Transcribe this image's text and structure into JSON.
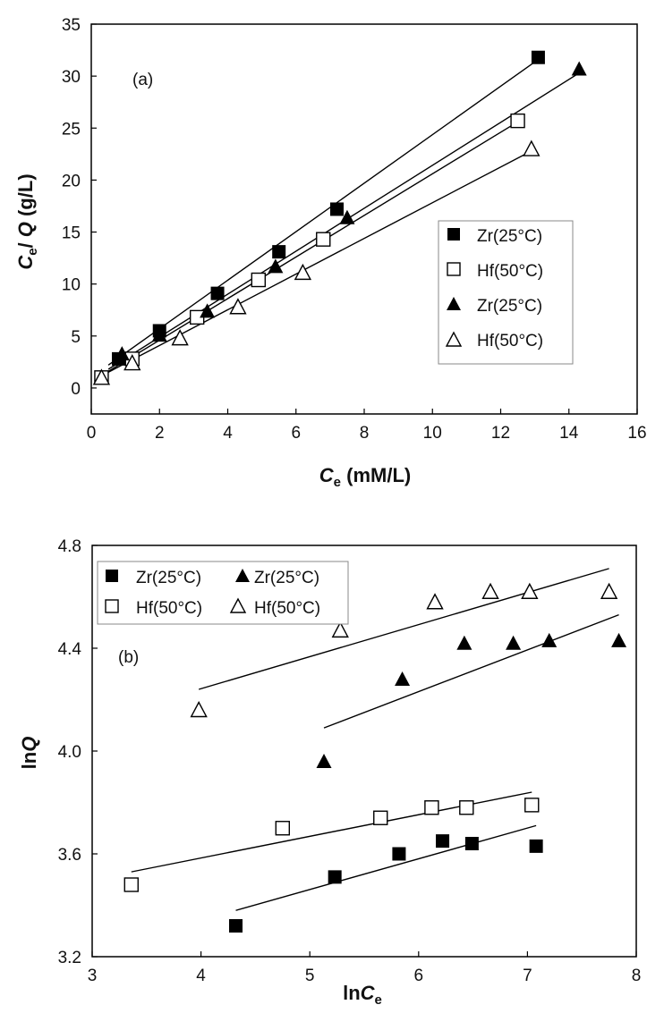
{
  "chart_data": [
    {
      "type": "scatter",
      "panel_label": "(a)",
      "xlabel_main": "C",
      "xlabel_sub": "e",
      "xlabel_rest": " (mM/L)",
      "ylabel_main1": "C",
      "ylabel_sub": "e",
      "ylabel_mid": "/ ",
      "ylabel_main2": "Q",
      "ylabel_rest": " (g/L)",
      "xlim": [
        0,
        16
      ],
      "ylim": [
        -2.5,
        35
      ],
      "xticks": [
        0,
        2,
        4,
        6,
        8,
        10,
        12,
        14,
        16
      ],
      "yticks": [
        0,
        5,
        10,
        15,
        20,
        25,
        30,
        35
      ],
      "grid": false,
      "legend_position": "right-middle",
      "series": [
        {
          "name": "Zr(25°C)",
          "marker": "square-filled",
          "x": [
            0.8,
            2.0,
            3.7,
            5.5,
            7.2,
            13.1
          ],
          "y": [
            2.8,
            5.5,
            9.1,
            13.1,
            17.2,
            31.8
          ],
          "fit": [
            [
              0.5,
              2.2
            ],
            [
              13.1,
              31.6
            ]
          ]
        },
        {
          "name": "Hf(50°C)",
          "marker": "square-open",
          "x": [
            0.3,
            1.2,
            3.1,
            4.9,
            6.8,
            12.5
          ],
          "y": [
            1.0,
            2.8,
            6.8,
            10.4,
            14.3,
            25.7
          ],
          "fit": [
            [
              0.2,
              1.0
            ],
            [
              12.5,
              25.6
            ]
          ]
        },
        {
          "name": "Zr(25°C)",
          "marker": "triangle-filled",
          "x": [
            0.9,
            2.0,
            3.4,
            5.4,
            7.5,
            14.3
          ],
          "y": [
            3.3,
            5.1,
            7.4,
            11.7,
            16.4,
            30.7
          ],
          "fit": [
            [
              0.5,
              1.8
            ],
            [
              14.3,
              30.3
            ]
          ]
        },
        {
          "name": "Hf(50°C)",
          "marker": "triangle-open",
          "x": [
            0.3,
            1.2,
            2.6,
            4.3,
            6.2,
            12.9
          ],
          "y": [
            1.0,
            2.4,
            4.8,
            7.8,
            11.1,
            23.0
          ],
          "fit": [
            [
              0.2,
              1.0
            ],
            [
              12.9,
              22.8
            ]
          ]
        }
      ]
    },
    {
      "type": "scatter",
      "panel_label": "(b)",
      "xlabel_main": "ln",
      "xlabel_var": "C",
      "xlabel_sub": "e",
      "ylabel_main": "ln",
      "ylabel_var": "Q",
      "xlim": [
        3,
        8
      ],
      "ylim": [
        3.2,
        4.8
      ],
      "xticks": [
        3,
        4,
        5,
        6,
        7,
        8
      ],
      "yticks": [
        3.2,
        3.6,
        4.0,
        4.4,
        4.8
      ],
      "ytick_labels": [
        "3.2",
        "3.6",
        "4.0",
        "4.4",
        "4.8"
      ],
      "grid": false,
      "legend_position": "top-left",
      "series": [
        {
          "name": "Zr(25°C)",
          "marker": "square-filled",
          "x": [
            4.32,
            5.23,
            5.82,
            6.22,
            6.49,
            7.08
          ],
          "y": [
            3.32,
            3.51,
            3.6,
            3.65,
            3.64,
            3.63
          ],
          "fit": [
            [
              4.32,
              3.38
            ],
            [
              7.08,
              3.71
            ]
          ]
        },
        {
          "name": "Zr(25°C)",
          "marker": "triangle-filled",
          "x": [
            5.13,
            5.85,
            6.42,
            6.87,
            7.2,
            7.84
          ],
          "y": [
            3.96,
            4.28,
            4.42,
            4.42,
            4.43,
            4.43
          ],
          "fit": [
            [
              5.13,
              4.09
            ],
            [
              7.84,
              4.53
            ]
          ]
        },
        {
          "name": "Hf(50°C)",
          "marker": "square-open",
          "x": [
            3.36,
            4.75,
            5.65,
            6.12,
            6.44,
            7.04
          ],
          "y": [
            3.48,
            3.7,
            3.74,
            3.78,
            3.78,
            3.79
          ],
          "fit": [
            [
              3.36,
              3.53
            ],
            [
              7.04,
              3.84
            ]
          ]
        },
        {
          "name": "Hf(50°C)",
          "marker": "triangle-open",
          "x": [
            3.98,
            5.28,
            6.15,
            6.66,
            7.02,
            7.75
          ],
          "y": [
            4.16,
            4.47,
            4.58,
            4.62,
            4.62,
            4.62
          ],
          "fit": [
            [
              3.98,
              4.24
            ],
            [
              7.75,
              4.71
            ]
          ]
        }
      ]
    }
  ]
}
